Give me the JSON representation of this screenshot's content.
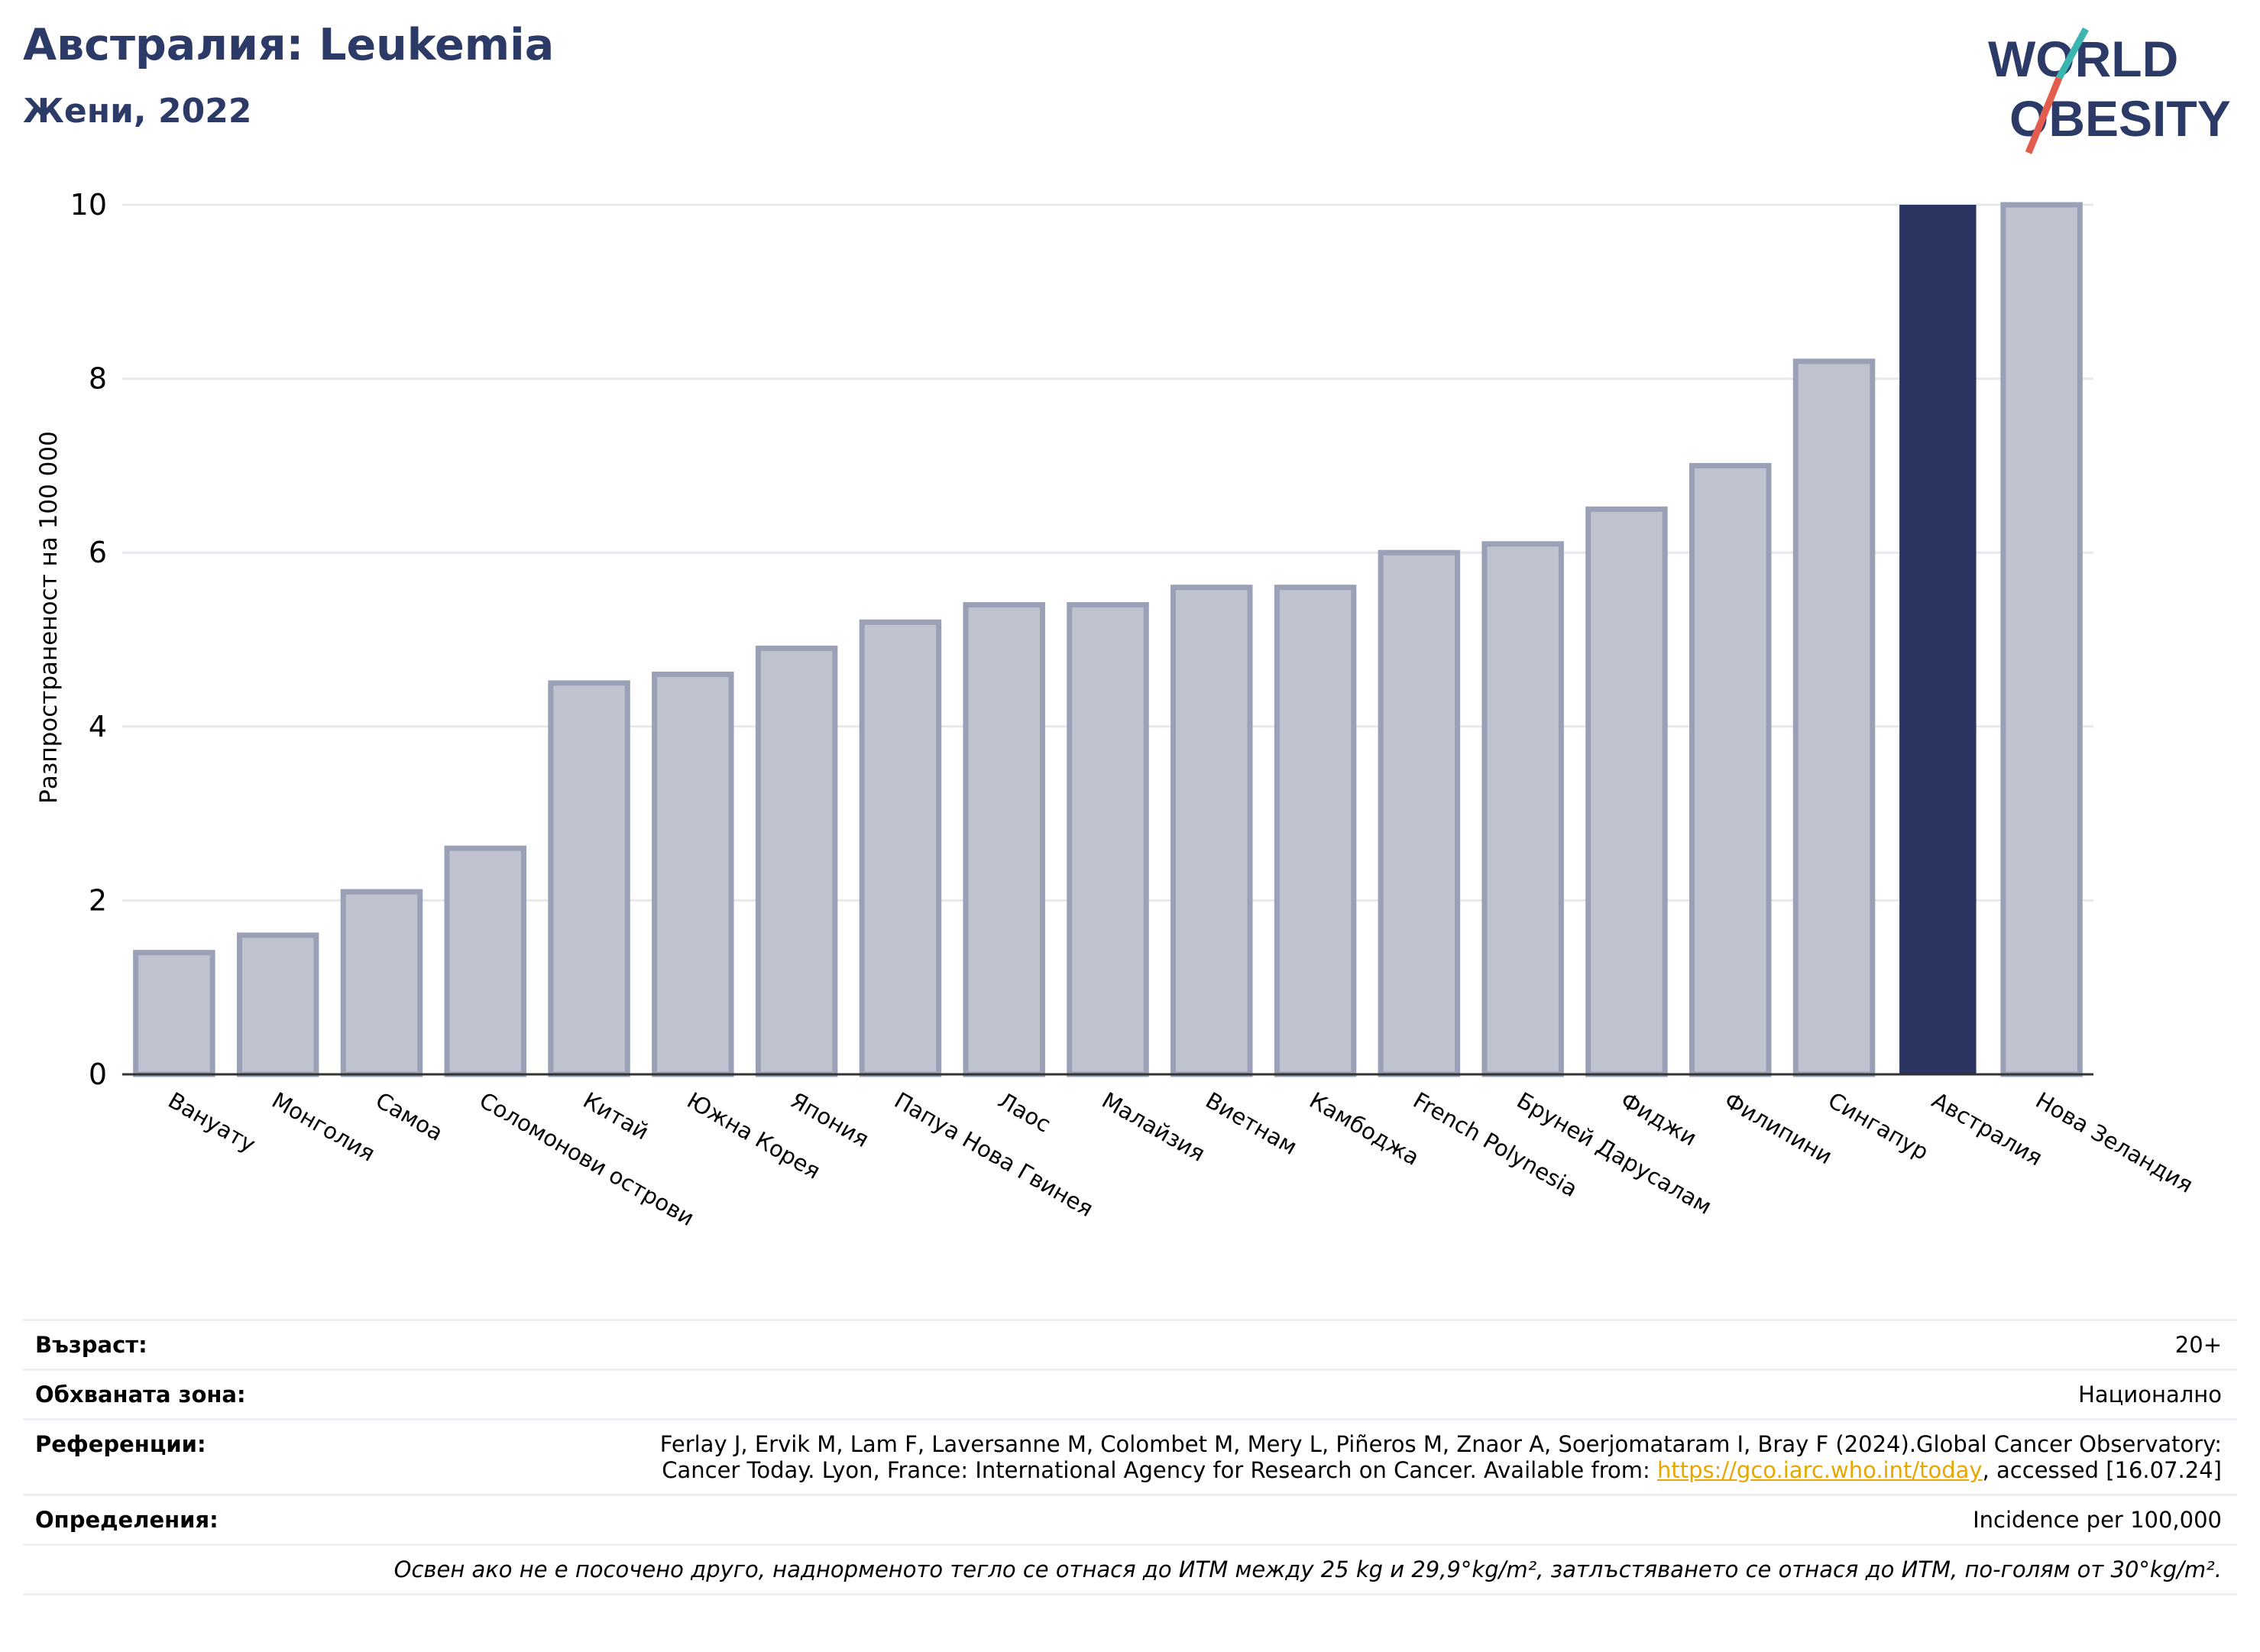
{
  "header": {
    "title": "Австралия: Leukemia",
    "subtitle": "Жени, 2022"
  },
  "logo": {
    "line1": "WORLD",
    "line2": "OBESITY",
    "brand_color": "#2b3a67",
    "accent_teal": "#3ab5b0",
    "accent_red": "#e35d4f"
  },
  "chart_data": {
    "type": "bar",
    "ylabel": "Разпространеност  на 100 000",
    "ylim": [
      0,
      10
    ],
    "yticks": [
      0,
      2,
      4,
      6,
      8,
      10
    ],
    "grid": true,
    "categories": [
      "Вануату",
      "Монголия",
      "Самоа",
      "Соломонови острови",
      "Китай",
      "Южна Корея",
      "Япония",
      "Папуа Нова Гвинея",
      "Лаос",
      "Малайзия",
      "Виетнам",
      "Камбоджа",
      "French Polynesia",
      "Бруней Дарусалам",
      "Фиджи",
      "Филипини",
      "Сингапур",
      "Австралия",
      "Нова Зеландия"
    ],
    "values": [
      1.4,
      1.6,
      2.1,
      2.6,
      4.5,
      4.6,
      4.9,
      5.2,
      5.4,
      5.4,
      5.6,
      5.6,
      6.0,
      6.1,
      6.5,
      7.0,
      8.2,
      10.0,
      10.0
    ],
    "highlight": "Австралия",
    "colors": {
      "bar": "#bfc3cf",
      "bar_edge": "#9aa0b5",
      "highlight": "#2b3561",
      "grid": "#e6e8ee",
      "axis": "#333333"
    }
  },
  "footer": {
    "age_label": "Възраст:",
    "age_value": "20+",
    "coverage_label": "Обхваната зона:",
    "coverage_value": "Национално",
    "references_label": "Референции:",
    "references_line1": "Ferlay J, Ervik M, Lam F, Laversanne M, Colombet M, Mery L, Piñeros M, Znaor A, Soerjomataram I, Bray F (2024).Global Cancer Observatory:",
    "references_line2_pre": "Cancer Today. Lyon, France: International Agency for Research on Cancer. Available from: ",
    "references_link": "https://gco.iarc.who.int/today",
    "references_line2_post": ", accessed [16.07.24]",
    "definitions_label": "Определения:",
    "definitions_value": "Incidence per 100,000",
    "note": "Освен ако не е посочено друго, наднормeното тегло се отнася до ИТМ между 25 kg и 29,9°kg/m², затлъстяването се отнася до ИТМ, по-голям от 30°kg/m²."
  }
}
